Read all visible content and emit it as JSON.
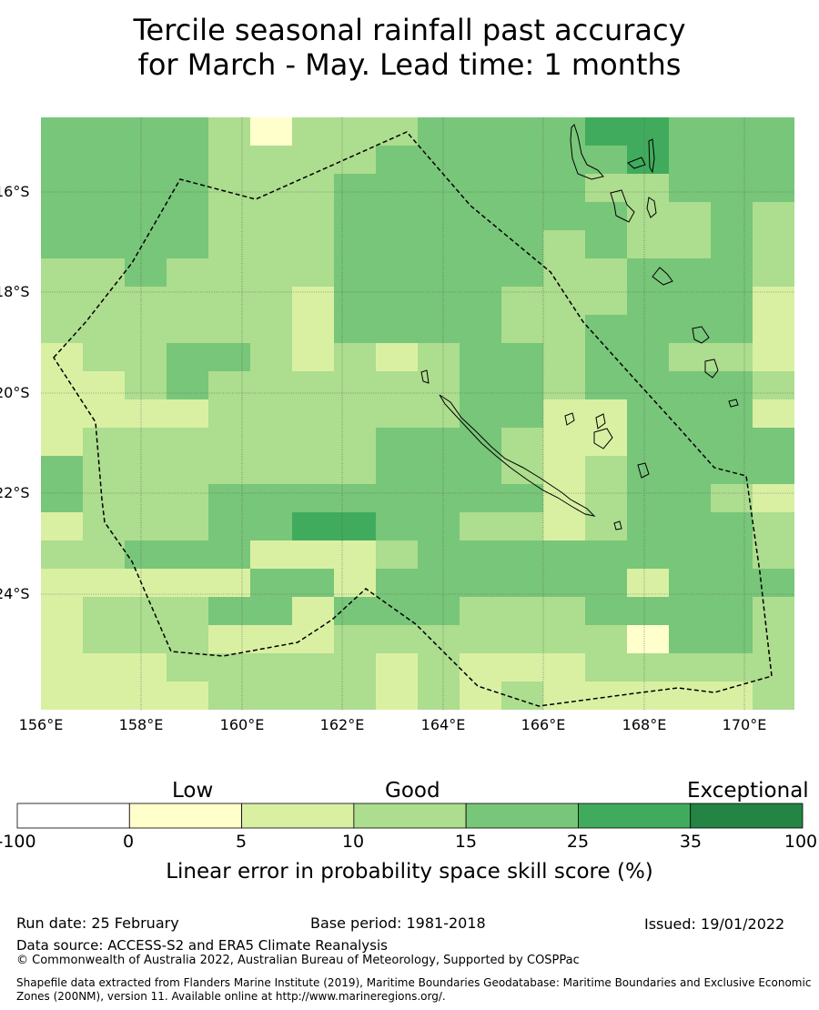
{
  "title": {
    "line1": "Tercile seasonal rainfall past accuracy",
    "line2": "for March - May. Lead time: 1 months"
  },
  "map": {
    "lat_labels": [
      "16°S",
      "18°S",
      "20°S",
      "22°S",
      "24°S"
    ],
    "lon_labels": [
      "156°E",
      "158°E",
      "160°E",
      "162°E",
      "164°E",
      "166°E",
      "168°E",
      "170°E"
    ],
    "grid_cols": 18,
    "grid_rows": 21,
    "skill_grid": [
      "444431333444455444",
      "444433334444445444",
      "444433344444433444",
      "444433344444443343",
      "444433344444343343",
      "334333344444334443",
      "333333244443334442",
      "333333244443344442",
      "233443232344344332",
      "223433333344344443",
      "222233333344224442",
      "233333334443224444",
      "433333334443234444",
      "433344444444234432",
      "233344554433234443",
      "334442223444444443",
      "222224424444442444",
      "233344244433344443",
      "233322233333331443",
      "222333332322233333",
      "222233332323222223"
    ],
    "color_key": {
      "1": "#ffffcc",
      "2": "#d9f0a3",
      "3": "#addd8e",
      "4": "#78c679",
      "5": "#41ab5d",
      "6": "#238443",
      "0": "#ffffff"
    }
  },
  "colorbar": {
    "categories": [
      "Low",
      "Good",
      "Exceptional"
    ],
    "ticks": [
      "-100",
      "0",
      "5",
      "10",
      "15",
      "25",
      "35",
      "100"
    ],
    "colors": [
      "#ffffff",
      "#ffffcc",
      "#d9f0a3",
      "#addd8e",
      "#78c679",
      "#41ab5d",
      "#238443"
    ],
    "label": "Linear error in probability space skill score (%)"
  },
  "footer": {
    "run_date": "Run date: 25 February",
    "base_period": "Base period: 1981-2018",
    "issued": "Issued: 19/01/2022",
    "data_source": "Data source: ACCESS-S2 and ERA5 Climate Reanalysis",
    "copyright": "© Commonwealth of Australia 2022, Australian Bureau of Meteorology, Supported by COSPPac",
    "shapefile_note": "Shapefile data extracted from Flanders Marine Institute (2019), Maritime Boundaries Geodatabase: Maritime Boundaries and Exclusive Economic Zones (200NM), version 11. Available online at http://www.marineregions.org/."
  }
}
